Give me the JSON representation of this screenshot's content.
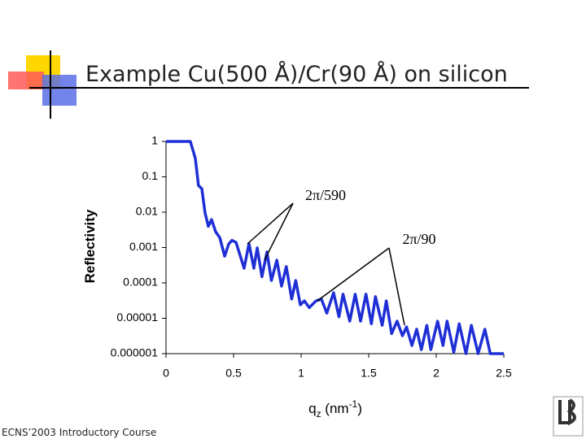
{
  "slide_title": "Example Cu(500 Å)/Cr(90 Å) on silicon",
  "footer": "ECNS’2003 Introductory Course",
  "chart_data": {
    "type": "line",
    "y_label": "Reflectivity",
    "x_label": [
      "q",
      "z",
      " (nm",
      "-1",
      ")"
    ],
    "log_y": true,
    "xlim": [
      0,
      2.5
    ],
    "xticks": [
      0,
      0.5,
      1,
      1.5,
      2,
      2.5
    ],
    "ylim": [
      1e-06,
      1
    ],
    "yticks": [
      1,
      0.1,
      0.01,
      0.001,
      0.0001,
      1e-05,
      1e-06
    ],
    "annotations": [
      "2π/590",
      "2π/90"
    ],
    "series": [
      {
        "name": "Reflectivity",
        "color": "#1f2fd6",
        "x": [
          0,
          0.18,
          0.217,
          0.24,
          0.265,
          0.289,
          0.313,
          0.337,
          0.367,
          0.398,
          0.434,
          0.464,
          0.488,
          0.518,
          0.578,
          0.614,
          0.65,
          0.675,
          0.71,
          0.747,
          0.78,
          0.82,
          0.855,
          0.89,
          0.93,
          0.96,
          0.994,
          1.024,
          1.06,
          1.11,
          1.15,
          1.19,
          1.24,
          1.28,
          1.31,
          1.36,
          1.4,
          1.44,
          1.48,
          1.52,
          1.55,
          1.6,
          1.63,
          1.67,
          1.71,
          1.75,
          1.78,
          1.82,
          1.855,
          1.89,
          1.93,
          1.96,
          2.01,
          2.05,
          2.08,
          2.13,
          2.17,
          2.22,
          2.26,
          2.31,
          2.36,
          2.4,
          2.5
        ],
        "values": [
          1,
          1,
          0.33,
          0.057,
          0.046,
          0.0095,
          0.004,
          0.0062,
          0.0028,
          0.0019,
          0.00057,
          0.00126,
          0.0016,
          0.0014,
          0.00026,
          0.0013,
          0.00026,
          0.00098,
          0.00015,
          0.00075,
          0.000117,
          0.00044,
          8.1e-05,
          0.00029,
          3.5e-05,
          0.000117,
          2.4e-05,
          3.1e-05,
          2e-05,
          3.1e-05,
          3.5e-05,
          1.4e-05,
          5.3e-05,
          1.1e-05,
          4.8e-05,
          8.3e-06,
          4.8e-05,
          8.3e-06,
          4.8e-05,
          7e-06,
          4.1e-05,
          6.3e-06,
          3.1e-05,
          3.7e-06,
          8.3e-06,
          3.2e-06,
          5.7e-06,
          1.7e-06,
          4.9e-06,
          1.3e-06,
          6.3e-06,
          1.3e-06,
          8.3e-06,
          1.7e-06,
          8.3e-06,
          1.1e-06,
          7e-06,
          1e-06,
          6.3e-06,
          1e-06,
          4.9e-06,
          1e-06,
          1e-06
        ]
      }
    ]
  }
}
